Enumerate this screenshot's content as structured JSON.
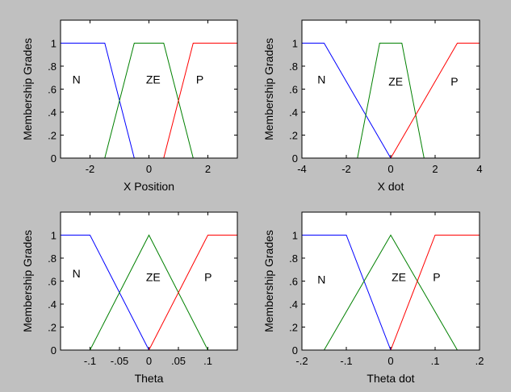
{
  "chart_data": [
    {
      "type": "line",
      "xlabel": "X Position",
      "ylabel": "Membership Grades",
      "xlim": [
        -3,
        3
      ],
      "ylim": [
        0,
        1.2
      ],
      "xticks": [
        -2,
        0,
        2
      ],
      "yticks": [
        0,
        0.2,
        0.4,
        0.6,
        0.8,
        1
      ],
      "series": [
        {
          "name": "N",
          "color": "#0000ff",
          "x": [
            -3,
            -1.5,
            -0.5,
            3
          ],
          "y": [
            1,
            1,
            0,
            0
          ],
          "label_pos": [
            -2.6,
            0.65
          ]
        },
        {
          "name": "ZE",
          "color": "#008000",
          "x": [
            -3,
            -1.5,
            -0.5,
            0.5,
            1.5,
            3
          ],
          "y": [
            0,
            0,
            1,
            1,
            0,
            0
          ],
          "label_pos": [
            -0.1,
            0.65
          ]
        },
        {
          "name": "P",
          "color": "#ff0000",
          "x": [
            -3,
            0.5,
            1.5,
            3
          ],
          "y": [
            0,
            0,
            1,
            1
          ],
          "label_pos": [
            1.6,
            0.65
          ]
        }
      ]
    },
    {
      "type": "line",
      "xlabel": "X dot",
      "ylabel": "Membership Grades",
      "xlim": [
        -4,
        4
      ],
      "ylim": [
        0,
        1.2
      ],
      "xticks": [
        -4,
        -2,
        0,
        2,
        4
      ],
      "yticks": [
        0,
        0.2,
        0.4,
        0.6,
        0.8,
        1
      ],
      "series": [
        {
          "name": "N",
          "color": "#0000ff",
          "x": [
            -4,
            -3,
            0,
            4
          ],
          "y": [
            1,
            1,
            0,
            0
          ],
          "label_pos": [
            -3.3,
            0.65
          ]
        },
        {
          "name": "ZE",
          "color": "#008000",
          "x": [
            -4,
            -1.5,
            -0.5,
            0.5,
            1.5,
            4
          ],
          "y": [
            0,
            0,
            1,
            1,
            0,
            0
          ],
          "label_pos": [
            -0.1,
            0.63
          ]
        },
        {
          "name": "P",
          "color": "#ff0000",
          "x": [
            -4,
            0,
            3,
            4
          ],
          "y": [
            0,
            0,
            1,
            1
          ],
          "label_pos": [
            2.7,
            0.63
          ]
        }
      ]
    },
    {
      "type": "line",
      "xlabel": "Theta",
      "ylabel": "Membership Grades",
      "xlim": [
        -0.15,
        0.15
      ],
      "ylim": [
        0,
        1.2
      ],
      "xticks": [
        -0.1,
        -0.05,
        0,
        0.05,
        0.1
      ],
      "yticks": [
        0,
        0.2,
        0.4,
        0.6,
        0.8,
        1
      ],
      "series": [
        {
          "name": "N",
          "color": "#0000ff",
          "x": [
            -0.15,
            -0.1,
            0,
            0.15
          ],
          "y": [
            1,
            1,
            0,
            0
          ],
          "label_pos": [
            -0.13,
            0.63
          ]
        },
        {
          "name": "ZE",
          "color": "#008000",
          "x": [
            -0.15,
            -0.1,
            0,
            0.1,
            0.15
          ],
          "y": [
            0,
            0,
            1,
            0,
            0
          ],
          "label_pos": [
            -0.005,
            0.6
          ]
        },
        {
          "name": "P",
          "color": "#ff0000",
          "x": [
            -0.15,
            0,
            0.1,
            0.15
          ],
          "y": [
            0,
            0,
            1,
            1
          ],
          "label_pos": [
            0.094,
            0.6
          ]
        }
      ]
    },
    {
      "type": "line",
      "xlabel": "Theta dot",
      "ylabel": "Membership Grades",
      "xlim": [
        -0.2,
        0.2
      ],
      "ylim": [
        0,
        1.2
      ],
      "xticks": [
        -0.2,
        -0.1,
        0,
        0.1,
        0.2
      ],
      "yticks": [
        0,
        0.2,
        0.4,
        0.6,
        0.8,
        1
      ],
      "series": [
        {
          "name": "N",
          "color": "#0000ff",
          "x": [
            -0.2,
            -0.1,
            0,
            0.2
          ],
          "y": [
            1,
            1,
            0,
            0
          ],
          "label_pos": [
            -0.165,
            0.58
          ]
        },
        {
          "name": "ZE",
          "color": "#008000",
          "x": [
            -0.2,
            -0.15,
            0,
            0.15,
            0.2
          ],
          "y": [
            0,
            0,
            1,
            0,
            0
          ],
          "label_pos": [
            0.002,
            0.6
          ]
        },
        {
          "name": "P",
          "color": "#ff0000",
          "x": [
            -0.2,
            0,
            0.1,
            0.2
          ],
          "y": [
            0,
            0,
            1,
            1
          ],
          "label_pos": [
            0.095,
            0.6
          ]
        }
      ]
    }
  ]
}
